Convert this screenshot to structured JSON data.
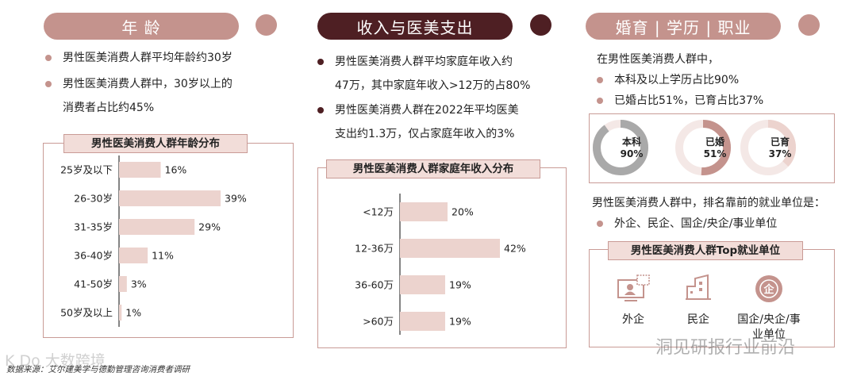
{
  "colors": {
    "rose": "#c4938d",
    "dark": "#4e1f23",
    "light_bar": "#ecd3ce",
    "pale": "#f2ddd9",
    "gray": "#a9a9a9"
  },
  "sections": {
    "age": {
      "title": "年 龄",
      "bullets": [
        "男性医美消费人群平均年龄约30岁",
        "男性医美消费人群中，30岁以上的",
        "消费者占比约45%"
      ]
    },
    "income": {
      "title": "收入与医美支出",
      "bullets": [
        "男性医美消费人群平均家庭年收入约",
        "47万，其中家庭年收入>12万的占80%",
        "男性医美消费人群在2022年平均医美",
        "支出约1.3万，仅占家庭年收入的3%"
      ]
    },
    "marriage": {
      "title": "婚育 | 学历 | 职业",
      "intro": "在男性医美消费人群中，",
      "bullets": [
        "本科及以上学历占比90%",
        "已婚占比51%，已育占比37%"
      ],
      "donuts": [
        {
          "label": "本科",
          "value_label": "90%",
          "value": 90,
          "color": "#a9a9a9"
        },
        {
          "label": "已婚",
          "value_label": "51%",
          "value": 51,
          "color": "#c4938d"
        },
        {
          "label": "已育",
          "value_label": "37%",
          "value": 37,
          "color": "#ecd3ce"
        }
      ],
      "employment_intro": "男性医美消费人群中，排名靠前的就业单位是：",
      "employment_bullet": "外企、民企、国企/央企/事业单位",
      "employment_title": "男性医美消费人群Top就业单位",
      "icons": [
        {
          "name": "foreign-company-icon",
          "label": "外企"
        },
        {
          "name": "private-company-icon",
          "label": "民企"
        },
        {
          "name": "state-company-icon",
          "label": "国企/央企/事业单位"
        }
      ]
    }
  },
  "chart_data": [
    {
      "type": "bar",
      "orientation": "horizontal",
      "title": "男性医美消费人群年龄分布",
      "categories": [
        "25岁及以下",
        "26-30岁",
        "31-35岁",
        "36-40岁",
        "41-50岁",
        "50岁及以上"
      ],
      "values": [
        16,
        39,
        29,
        11,
        3,
        1
      ],
      "value_labels": [
        "16%",
        "39%",
        "29%",
        "11%",
        "3%",
        "1%"
      ],
      "color": "#ecd3ce"
    },
    {
      "type": "bar",
      "orientation": "horizontal",
      "title": "男性医美消费人群家庭年收入分布",
      "categories": [
        "<12万",
        "12-36万",
        "36-60万",
        ">60万"
      ],
      "values": [
        20,
        42,
        19,
        19
      ],
      "value_labels": [
        "20%",
        "42%",
        "19%",
        "19%"
      ],
      "color": "#ecd3ce"
    }
  ],
  "footer": "数据来源：艾尔建美学与德勤管理咨询消费者调研",
  "watermarks": [
    "K Do 大数跨境",
    "洞见研报行业前沿"
  ]
}
